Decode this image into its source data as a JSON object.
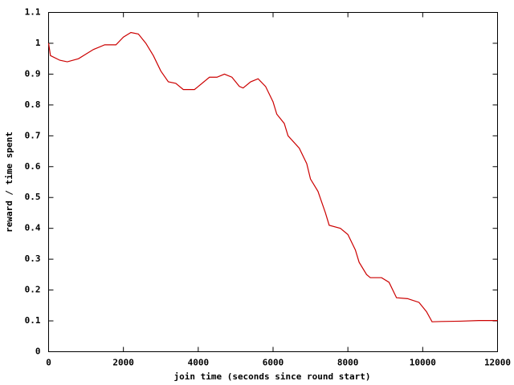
{
  "chart_data": {
    "type": "line",
    "x_label": "join time (seconds since round start)",
    "y_label": "reward / time spent",
    "x": [
      0,
      50,
      300,
      500,
      800,
      1000,
      1200,
      1500,
      1800,
      2000,
      2200,
      2400,
      2600,
      2800,
      3000,
      3200,
      3400,
      3600,
      3900,
      4000,
      4300,
      4500,
      4700,
      4900,
      5100,
      5200,
      5400,
      5600,
      5800,
      6000,
      6100,
      6300,
      6400,
      6700,
      6900,
      7000,
      7200,
      7400,
      7500,
      7800,
      8000,
      8200,
      8300,
      8500,
      8600,
      8900,
      9100,
      9300,
      9600,
      9900,
      10100,
      10250,
      10500,
      11000,
      11500,
      12000
    ],
    "series": [
      {
        "color": "#cc0000",
        "values": [
          1.0,
          0.96,
          0.945,
          0.94,
          0.95,
          0.965,
          0.98,
          0.995,
          0.995,
          1.02,
          1.035,
          1.03,
          1.0,
          0.96,
          0.91,
          0.875,
          0.87,
          0.85,
          0.85,
          0.86,
          0.89,
          0.89,
          0.9,
          0.89,
          0.86,
          0.855,
          0.875,
          0.885,
          0.86,
          0.81,
          0.77,
          0.74,
          0.7,
          0.66,
          0.61,
          0.56,
          0.52,
          0.45,
          0.41,
          0.4,
          0.38,
          0.33,
          0.29,
          0.25,
          0.24,
          0.24,
          0.225,
          0.175,
          0.172,
          0.16,
          0.13,
          0.097,
          0.098,
          0.099,
          0.101,
          0.101
        ]
      }
    ],
    "xlim": [
      0,
      12000
    ],
    "xticks": [
      0,
      2000,
      4000,
      6000,
      8000,
      10000,
      12000
    ],
    "ylim": [
      0,
      1.1
    ],
    "yticks": [
      0,
      0.1,
      0.2,
      0.3,
      0.4,
      0.5,
      0.6,
      0.7,
      0.8,
      0.9,
      1,
      1.1
    ]
  }
}
